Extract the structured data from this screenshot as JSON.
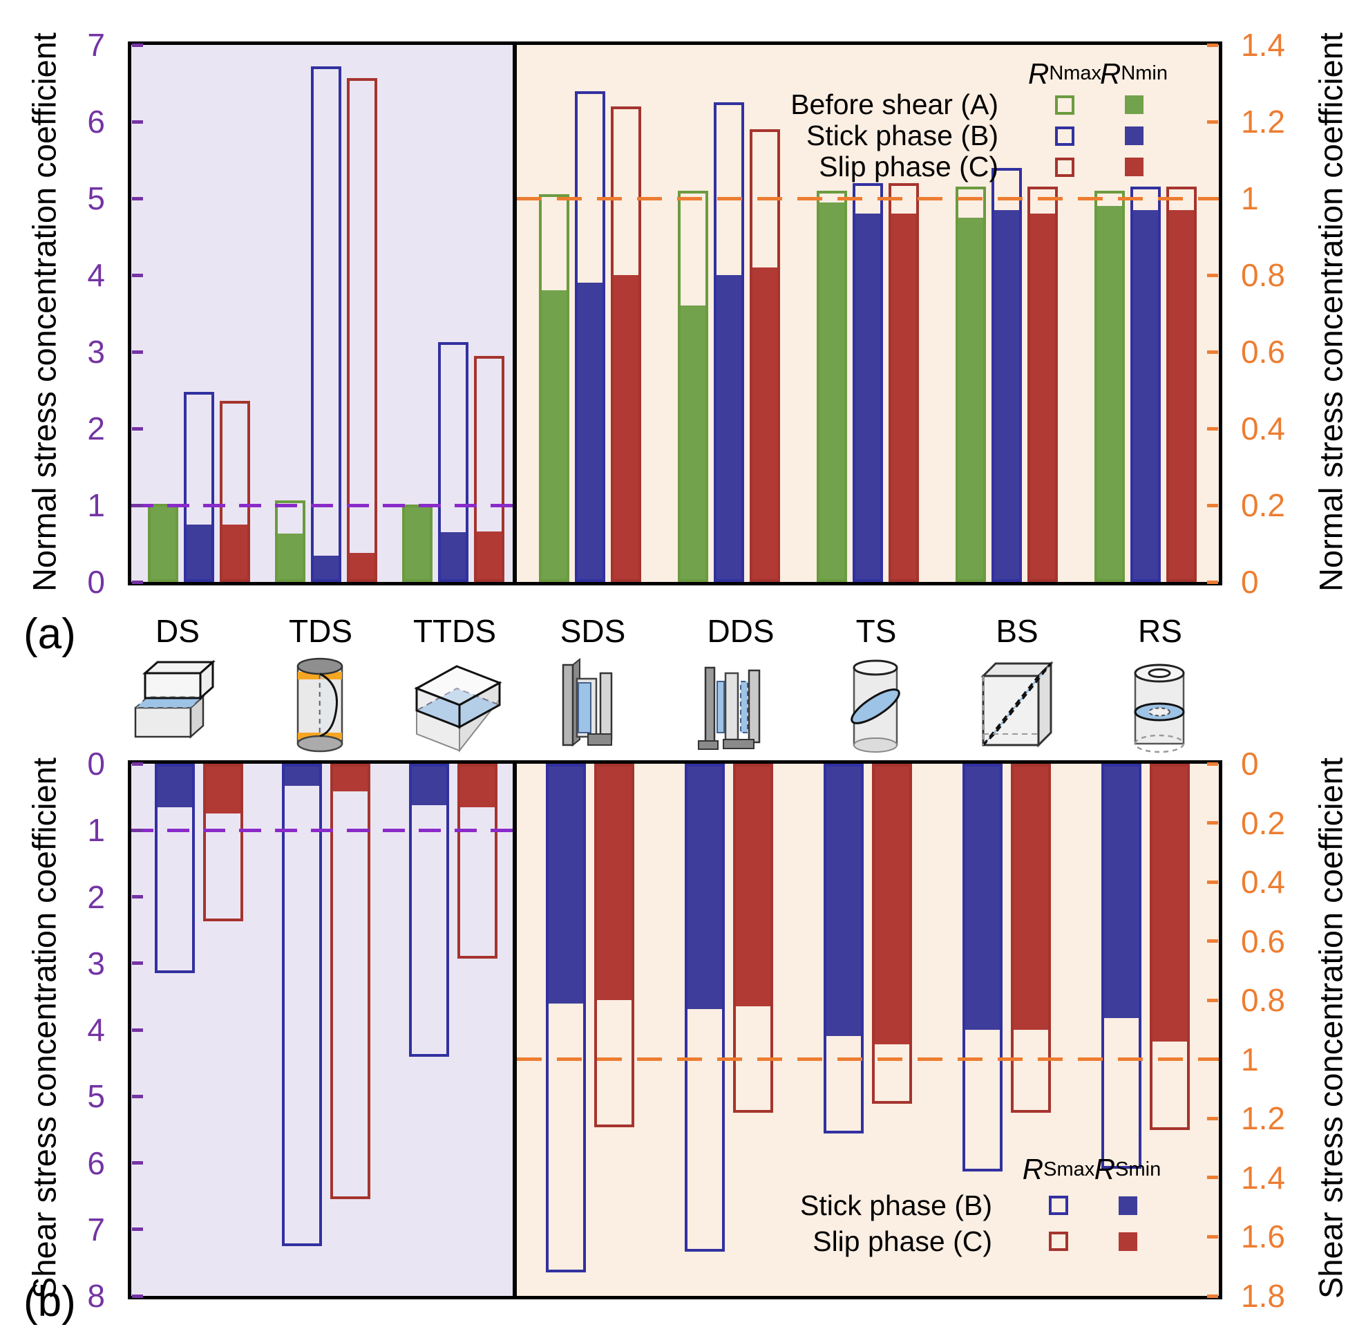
{
  "panel_a_label": "(a)",
  "panel_b_label": "(b)",
  "colors": {
    "phase_fill": {
      "A": "#72A24C",
      "B": "#3E3D9B",
      "C": "#B23A34"
    },
    "phase_outline": {
      "A": "#6B9B40",
      "B": "#3231A0",
      "C": "#A5342E"
    },
    "left_axis": "#7434A4",
    "left_ref": "#8A2BC9",
    "right_axis": "#ED7D31",
    "right_ref": "#ED7D31",
    "bg_left_region": "#EAE5F3",
    "bg_right_region": "#FBEEE2",
    "icon_plane": "#9DC3E6",
    "icon_band_orange": "#F5A623"
  },
  "categories": [
    {
      "label": "DS",
      "icon": "ds-direct-shear-blocks-icon"
    },
    {
      "label": "TDS",
      "icon": "tds-cylinder-shear-icon"
    },
    {
      "label": "TTDS",
      "icon": "ttds-tilted-box-shear-icon"
    },
    {
      "label": "SDS",
      "icon": "sds-single-plate-shear-icon"
    },
    {
      "label": "DDS",
      "icon": "dds-double-plate-shear-icon"
    },
    {
      "label": "TS",
      "icon": "ts-torsion-cylinder-icon"
    },
    {
      "label": "BS",
      "icon": "bs-diagonal-block-shear-icon"
    },
    {
      "label": "RS",
      "icon": "rs-ring-shear-cylinder-icon"
    }
  ],
  "chart_data": [
    {
      "id": "panel_a",
      "type": "bar",
      "orientation": "up",
      "panel_label": "(a)",
      "left_axis": {
        "label": "Normal stress concentration coefficient",
        "range": [
          0,
          7
        ],
        "ticks": [
          "0",
          "1",
          "2",
          "3",
          "4",
          "5",
          "6",
          "7"
        ],
        "ref_value": 1
      },
      "right_axis": {
        "label": "Normal stress concentration coefficient",
        "range": [
          0,
          1.4
        ],
        "ticks": [
          "0",
          "0.2",
          "0.4",
          "0.6",
          "0.8",
          "1",
          "1.2",
          "1.4"
        ],
        "ref_value": 1
      },
      "legend": {
        "position": "top-right",
        "max_header": {
          "main": "R",
          "sub": "Nmax"
        },
        "min_header": {
          "main": "R",
          "sub": "Nmin"
        },
        "rows": [
          {
            "phase": "A",
            "label": "Before shear (A)"
          },
          {
            "phase": "B",
            "label": "Stick phase (B)"
          },
          {
            "phase": "C",
            "label": "Slip phase (C)"
          }
        ]
      },
      "left_groups": [
        {
          "category": "DS",
          "bars": [
            {
              "phase": "A",
              "max": 1.02,
              "min": 1.0
            },
            {
              "phase": "B",
              "max": 2.48,
              "min": 0.75
            },
            {
              "phase": "C",
              "max": 2.36,
              "min": 0.75
            }
          ]
        },
        {
          "category": "TDS",
          "bars": [
            {
              "phase": "A",
              "max": 1.06,
              "min": 0.63
            },
            {
              "phase": "B",
              "max": 6.72,
              "min": 0.34
            },
            {
              "phase": "C",
              "max": 6.57,
              "min": 0.38
            }
          ]
        },
        {
          "category": "TTDS",
          "bars": [
            {
              "phase": "A",
              "max": 1.01,
              "min": 1.0
            },
            {
              "phase": "B",
              "max": 3.13,
              "min": 0.65
            },
            {
              "phase": "C",
              "max": 2.95,
              "min": 0.66
            }
          ]
        }
      ],
      "right_groups": [
        {
          "category": "SDS",
          "bars": [
            {
              "phase": "A",
              "max": 1.01,
              "min": 0.76
            },
            {
              "phase": "B",
              "max": 1.28,
              "min": 0.78
            },
            {
              "phase": "C",
              "max": 1.24,
              "min": 0.8
            }
          ]
        },
        {
          "category": "DDS",
          "bars": [
            {
              "phase": "A",
              "max": 1.02,
              "min": 0.72
            },
            {
              "phase": "B",
              "max": 1.25,
              "min": 0.8
            },
            {
              "phase": "C",
              "max": 1.18,
              "min": 0.82
            }
          ]
        },
        {
          "category": "TS",
          "bars": [
            {
              "phase": "A",
              "max": 1.02,
              "min": 0.99
            },
            {
              "phase": "B",
              "max": 1.04,
              "min": 0.96
            },
            {
              "phase": "C",
              "max": 1.04,
              "min": 0.96
            }
          ]
        },
        {
          "category": "BS",
          "bars": [
            {
              "phase": "A",
              "max": 1.03,
              "min": 0.95
            },
            {
              "phase": "B",
              "max": 1.08,
              "min": 0.97
            },
            {
              "phase": "C",
              "max": 1.03,
              "min": 0.96
            }
          ]
        },
        {
          "category": "RS",
          "bars": [
            {
              "phase": "A",
              "max": 1.02,
              "min": 0.98
            },
            {
              "phase": "B",
              "max": 1.03,
              "min": 0.97
            },
            {
              "phase": "C",
              "max": 1.03,
              "min": 0.97
            }
          ]
        }
      ]
    },
    {
      "id": "panel_b",
      "type": "bar",
      "orientation": "down",
      "panel_label": "(b)",
      "left_axis": {
        "label": "Shear stress concentration coefficient",
        "range": [
          0,
          8
        ],
        "ticks": [
          "0",
          "1",
          "2",
          "3",
          "4",
          "5",
          "6",
          "7",
          "8"
        ],
        "ref_value": 1
      },
      "right_axis": {
        "label": "Shear stress concentration coefficient",
        "range": [
          0,
          1.8
        ],
        "ticks": [
          "0",
          "0.2",
          "0.4",
          "0.6",
          "0.8",
          "1",
          "1.2",
          "1.4",
          "1.6",
          "1.8"
        ],
        "ref_value": 1
      },
      "legend": {
        "position": "bottom-right",
        "max_header": {
          "main": "R",
          "sub": "Smax"
        },
        "min_header": {
          "main": "R",
          "sub": "Smin"
        },
        "rows": [
          {
            "phase": "B",
            "label": "Stick phase (B)"
          },
          {
            "phase": "C",
            "label": "Slip phase (C)"
          }
        ]
      },
      "left_groups": [
        {
          "category": "DS",
          "bars": [
            {
              "phase": "B",
              "max": 3.15,
              "min": 0.65
            },
            {
              "phase": "C",
              "max": 2.37,
              "min": 0.75
            }
          ]
        },
        {
          "category": "TDS",
          "bars": [
            {
              "phase": "B",
              "max": 7.25,
              "min": 0.33
            },
            {
              "phase": "C",
              "max": 6.55,
              "min": 0.42
            }
          ]
        },
        {
          "category": "TTDS",
          "bars": [
            {
              "phase": "B",
              "max": 4.4,
              "min": 0.62
            },
            {
              "phase": "C",
              "max": 2.93,
              "min": 0.65
            }
          ]
        }
      ],
      "right_groups": [
        {
          "category": "SDS",
          "bars": [
            {
              "phase": "B",
              "max": 1.72,
              "min": 0.81
            },
            {
              "phase": "C",
              "max": 1.23,
              "min": 0.8
            }
          ]
        },
        {
          "category": "DDS",
          "bars": [
            {
              "phase": "B",
              "max": 1.65,
              "min": 0.83
            },
            {
              "phase": "C",
              "max": 1.18,
              "min": 0.82
            }
          ]
        },
        {
          "category": "TS",
          "bars": [
            {
              "phase": "B",
              "max": 1.25,
              "min": 0.92
            },
            {
              "phase": "C",
              "max": 1.15,
              "min": 0.95
            }
          ]
        },
        {
          "category": "BS",
          "bars": [
            {
              "phase": "B",
              "max": 1.38,
              "min": 0.9
            },
            {
              "phase": "C",
              "max": 1.18,
              "min": 0.9
            }
          ]
        },
        {
          "category": "RS",
          "bars": [
            {
              "phase": "B",
              "max": 1.37,
              "min": 0.86
            },
            {
              "phase": "C",
              "max": 1.24,
              "min": 0.94
            }
          ]
        }
      ]
    }
  ]
}
